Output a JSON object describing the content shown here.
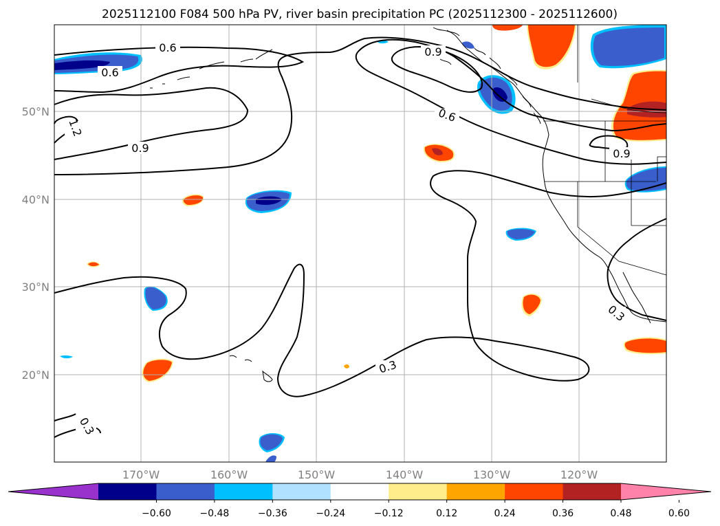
{
  "title": "2025112100 F084 500 hPa PV, river basin precipitation PC (2025112300 - 2025112600)",
  "lat_labels": [
    "50°N",
    "40°N",
    "30°N",
    "20°N"
  ],
  "lon_labels": [
    "170°W",
    "160°W",
    "150°W",
    "140°W",
    "130°W",
    "120°W"
  ],
  "colorbar": {
    "colors": [
      "#9932cc",
      "#00008b",
      "#3a5fcd",
      "#00bfff",
      "#b0e2ff",
      "#ffffff",
      "#ffec8b",
      "#ffa500",
      "#ff4500",
      "#b22222",
      "#ff82ab"
    ],
    "ticks": [
      "−0.60",
      "−0.48",
      "−0.36",
      "−0.24",
      "−0.12",
      "0.12",
      "0.24",
      "0.36",
      "0.48",
      "0.60"
    ]
  },
  "contour_labels": [
    "0.6",
    "0.6",
    "0.9",
    "0.6",
    "1.2",
    "0.9",
    "0.9",
    "0.3",
    "0.3",
    "0.3"
  ],
  "colors": {
    "neg_dark": "#00008b",
    "neg_mid": "#3a5fcd",
    "neg_light": "#00bfff",
    "pos_yellow": "#ffec8b",
    "pos_orange": "#ff4500",
    "pos_dark": "#b22222"
  }
}
